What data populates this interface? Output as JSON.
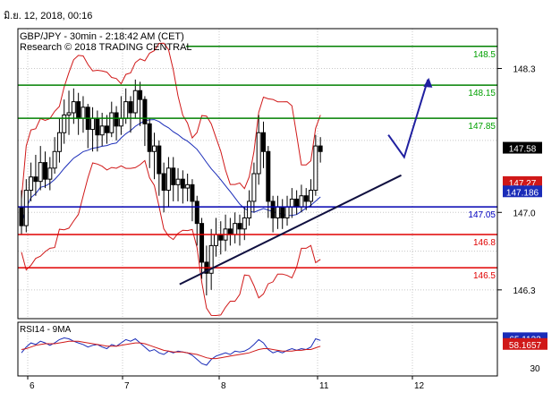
{
  "header": {
    "date_label": "มิ.ย. 12, 2018, 00:16"
  },
  "colors": {
    "grid": "#c8c8c8",
    "candle": "#000000",
    "ma": "#1a2cb8",
    "bollinger": "#d01818",
    "support": "#e00000",
    "resistance": "#008000",
    "pivot": "#0000b0",
    "trendline": "#101040",
    "rsi": "#1a2cb8",
    "rsi_ma": "#d01818",
    "label_green": "#00a000",
    "label_blue": "#0000c0",
    "label_red": "#e00000"
  },
  "chart_data": {
    "type": "candlestick",
    "title": "GBP/JPY - 30min - 2:18:42 AM (CET)",
    "subtitle": "Research © 2018 TRADING CENTRAL",
    "x_labels": [
      "6",
      "7",
      "8",
      "11",
      "12"
    ],
    "y_labels": [
      "148.3",
      "147.0",
      "146.3"
    ],
    "y_ticks": [
      148.3,
      147.65,
      147.0,
      146.65,
      146.3
    ],
    "ylim": [
      146.04,
      148.66
    ],
    "grid": true,
    "levels": [
      {
        "value": 148.5,
        "label": "148.5",
        "kind": "resistance"
      },
      {
        "value": 148.15,
        "label": "148.15",
        "kind": "resistance"
      },
      {
        "value": 147.85,
        "label": "147.85",
        "kind": "resistance"
      },
      {
        "value": 147.05,
        "label": "147.05",
        "kind": "pivot"
      },
      {
        "value": 146.8,
        "label": "146.8",
        "kind": "support"
      },
      {
        "value": 146.5,
        "label": "146.5",
        "kind": "support"
      }
    ],
    "price_tags": [
      {
        "value": 147.58,
        "label": "147.58",
        "kind": "last"
      },
      {
        "value": 147.27,
        "label": "147.27",
        "kind": "bb_upper"
      },
      {
        "value": 147.186,
        "label": "147.186",
        "kind": "ma"
      }
    ],
    "trendline": {
      "x": [
        0.4,
        0.87
      ],
      "y": [
        146.35,
        147.4
      ]
    },
    "forecast_arrow": {
      "x": [
        0.86,
        0.9,
        0.96
      ],
      "y": [
        147.7,
        147.5,
        148.2
      ]
    },
    "candles": [
      [
        0.0,
        147.05,
        146.88,
        147.2,
        146.8
      ],
      [
        0.012,
        146.88,
        147.2,
        147.3,
        146.82
      ],
      [
        0.024,
        147.2,
        147.32,
        147.45,
        147.1
      ],
      [
        0.036,
        147.32,
        147.28,
        147.52,
        147.15
      ],
      [
        0.048,
        147.28,
        147.45,
        147.6,
        147.2
      ],
      [
        0.06,
        147.45,
        147.3,
        147.55,
        147.22
      ],
      [
        0.072,
        147.3,
        147.4,
        147.5,
        147.2
      ],
      [
        0.084,
        147.4,
        147.55,
        147.68,
        147.35
      ],
      [
        0.096,
        147.55,
        147.72,
        147.85,
        147.45
      ],
      [
        0.108,
        147.72,
        147.88,
        148.02,
        147.62
      ],
      [
        0.12,
        147.88,
        147.9,
        148.1,
        147.7
      ],
      [
        0.132,
        147.9,
        148.0,
        148.12,
        147.8
      ],
      [
        0.144,
        148.0,
        147.85,
        148.08,
        147.7
      ],
      [
        0.156,
        147.85,
        147.95,
        148.05,
        147.72
      ],
      [
        0.168,
        147.95,
        147.75,
        147.98,
        147.58
      ],
      [
        0.18,
        147.75,
        147.85,
        147.95,
        147.55
      ],
      [
        0.192,
        147.85,
        147.7,
        147.92,
        147.55
      ],
      [
        0.204,
        147.7,
        147.78,
        147.9,
        147.6
      ],
      [
        0.216,
        147.78,
        147.72,
        147.88,
        147.62
      ],
      [
        0.228,
        147.72,
        147.9,
        148.0,
        147.68
      ],
      [
        0.24,
        147.9,
        147.78,
        147.96,
        147.65
      ],
      [
        0.252,
        147.78,
        147.85,
        148.05,
        147.7
      ],
      [
        0.264,
        147.85,
        148.0,
        148.12,
        147.8
      ],
      [
        0.276,
        148.0,
        147.9,
        148.05,
        147.72
      ],
      [
        0.288,
        147.9,
        148.1,
        148.2,
        147.85
      ],
      [
        0.3,
        148.1,
        148.02,
        148.18,
        147.78
      ],
      [
        0.312,
        148.02,
        147.8,
        148.05,
        147.6
      ],
      [
        0.324,
        147.8,
        147.55,
        147.85,
        147.4
      ],
      [
        0.336,
        147.55,
        147.6,
        147.72,
        147.3
      ],
      [
        0.348,
        147.6,
        147.35,
        147.65,
        147.15
      ],
      [
        0.36,
        147.35,
        147.2,
        147.45,
        147.0
      ],
      [
        0.372,
        147.2,
        147.4,
        147.5,
        147.05
      ],
      [
        0.384,
        147.4,
        147.25,
        147.5,
        147.1
      ],
      [
        0.396,
        147.25,
        147.3,
        147.4,
        147.1
      ],
      [
        0.408,
        147.3,
        147.22,
        147.38,
        147.08
      ],
      [
        0.42,
        147.22,
        147.25,
        147.35,
        147.1
      ],
      [
        0.432,
        147.25,
        147.1,
        147.3,
        146.92
      ],
      [
        0.444,
        147.1,
        146.9,
        147.15,
        146.7
      ],
      [
        0.456,
        146.9,
        146.55,
        146.95,
        146.4
      ],
      [
        0.468,
        146.55,
        146.45,
        146.7,
        146.25
      ],
      [
        0.48,
        146.45,
        146.7,
        146.85,
        146.3
      ],
      [
        0.492,
        146.7,
        146.8,
        146.95,
        146.6
      ],
      [
        0.504,
        146.8,
        146.75,
        146.92,
        146.62
      ],
      [
        0.516,
        146.75,
        146.85,
        146.98,
        146.65
      ],
      [
        0.528,
        146.85,
        146.8,
        146.95,
        146.7
      ],
      [
        0.54,
        146.8,
        146.9,
        147.0,
        146.72
      ],
      [
        0.552,
        146.9,
        146.85,
        146.98,
        146.7
      ],
      [
        0.564,
        146.85,
        146.95,
        147.05,
        146.75
      ],
      [
        0.576,
        146.95,
        147.1,
        147.2,
        146.88
      ],
      [
        0.588,
        147.1,
        147.35,
        147.45,
        147.0
      ],
      [
        0.6,
        147.35,
        147.72,
        147.88,
        147.25
      ],
      [
        0.612,
        147.72,
        147.55,
        147.82,
        147.4
      ],
      [
        0.624,
        147.55,
        147.1,
        147.6,
        146.95
      ],
      [
        0.636,
        147.1,
        146.95,
        147.15,
        146.82
      ],
      [
        0.648,
        146.95,
        147.05,
        147.15,
        146.85
      ],
      [
        0.66,
        147.05,
        146.95,
        147.12,
        146.85
      ],
      [
        0.672,
        146.95,
        147.05,
        147.15,
        146.88
      ],
      [
        0.684,
        147.05,
        147.12,
        147.22,
        146.95
      ],
      [
        0.696,
        147.12,
        147.05,
        147.2,
        146.98
      ],
      [
        0.708,
        147.05,
        147.15,
        147.25,
        147.0
      ],
      [
        0.72,
        147.15,
        147.1,
        147.22,
        147.02
      ],
      [
        0.732,
        147.1,
        147.2,
        147.3,
        147.05
      ],
      [
        0.744,
        147.2,
        147.6,
        147.7,
        147.15
      ],
      [
        0.756,
        147.6,
        147.55,
        147.68,
        147.45
      ]
    ],
    "rsi": {
      "label": "RSI14 - 9MA",
      "y_labels": [
        "30"
      ],
      "ylim": [
        20,
        85
      ],
      "tags": [
        {
          "value": 65.1132,
          "label": "65.1132",
          "kind": "rsi"
        },
        {
          "value": 58.1657,
          "label": "58.1657",
          "kind": "rsi_ma"
        }
      ],
      "values": [
        48,
        55,
        60,
        58,
        62,
        60,
        57,
        60,
        64,
        66,
        65,
        62,
        60,
        58,
        55,
        57,
        58,
        55,
        53,
        58,
        56,
        60,
        64,
        62,
        65,
        60,
        55,
        50,
        52,
        48,
        46,
        50,
        48,
        50,
        49,
        48,
        45,
        40,
        35,
        33,
        40,
        44,
        46,
        48,
        46,
        50,
        49,
        50,
        53,
        58,
        64,
        60,
        52,
        48,
        50,
        48,
        51,
        53,
        51,
        53,
        52,
        55,
        65,
        63
      ],
      "ma": [
        52,
        53,
        55,
        57,
        58,
        59,
        59,
        59,
        60,
        61,
        62,
        62,
        62,
        61,
        60,
        59,
        58,
        57,
        56,
        56,
        56,
        57,
        58,
        59,
        60,
        60,
        59,
        57,
        55,
        53,
        51,
        50,
        49,
        49,
        49,
        48,
        47,
        46,
        44,
        42,
        41,
        41,
        42,
        43,
        44,
        45,
        46,
        47,
        48,
        50,
        52,
        53,
        53,
        52,
        51,
        50,
        50,
        50,
        51,
        51,
        52,
        52,
        54,
        56
      ]
    }
  }
}
